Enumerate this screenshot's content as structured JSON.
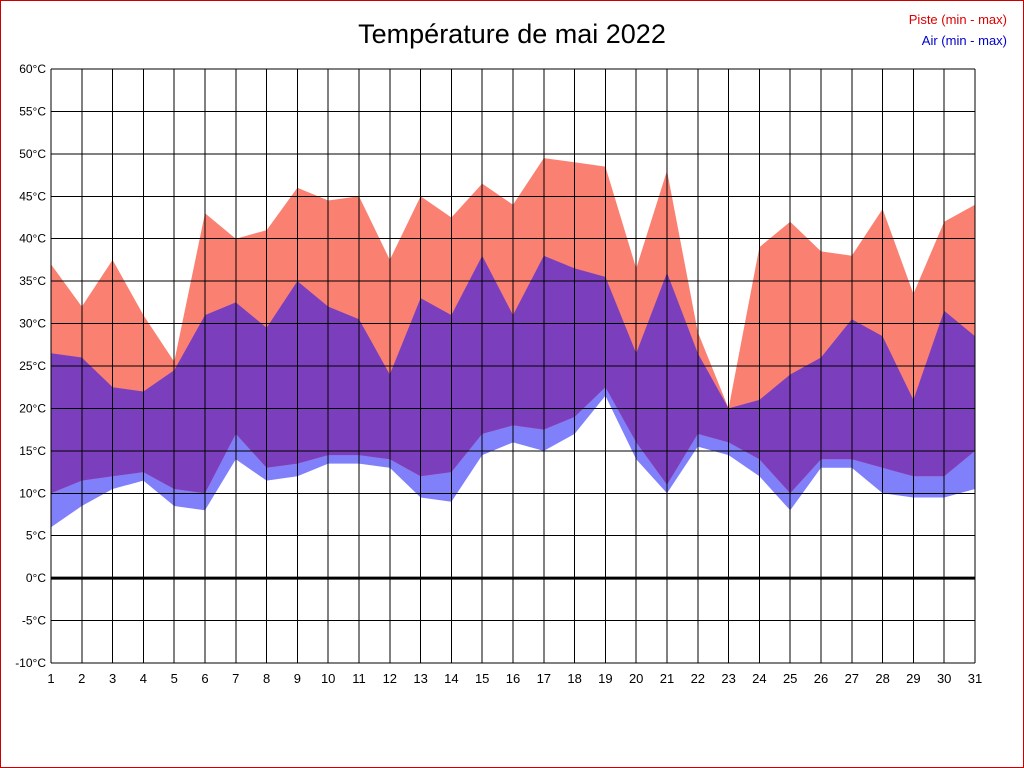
{
  "title": "Température de mai 2022",
  "legend": {
    "piste_label": "Piste (min - max)",
    "air_label": "Air (min - max)",
    "piste_color": "#dd0000",
    "air_color": "#0000cc"
  },
  "chart_data": {
    "type": "area",
    "title": "Température de mai 2022",
    "x": [
      1,
      2,
      3,
      4,
      5,
      6,
      7,
      8,
      9,
      10,
      11,
      12,
      13,
      14,
      15,
      16,
      17,
      18,
      19,
      20,
      21,
      22,
      23,
      24,
      25,
      26,
      27,
      28,
      29,
      30,
      31
    ],
    "series": [
      {
        "name": "Piste max",
        "key": "piste_max",
        "values": [
          37,
          32,
          37.5,
          31,
          25.5,
          43,
          40,
          41,
          46,
          44.5,
          45,
          37.5,
          45,
          42.5,
          46.5,
          44,
          49.5,
          49,
          48.5,
          36.5,
          48,
          29,
          20,
          39,
          42,
          38.5,
          38,
          43.5,
          33.5,
          42,
          44
        ]
      },
      {
        "name": "Piste min",
        "key": "piste_min",
        "values": [
          10,
          11.5,
          12,
          12.5,
          10.5,
          10,
          17,
          13,
          13.5,
          14.5,
          14.5,
          14,
          12,
          12.5,
          17,
          18,
          17.5,
          19,
          22.5,
          16,
          11,
          17,
          16,
          14,
          10,
          14,
          14,
          13,
          12,
          12,
          15
        ]
      },
      {
        "name": "Air max",
        "key": "air_max",
        "values": [
          26.5,
          26,
          22.5,
          22,
          24.5,
          31,
          32.5,
          29.5,
          35,
          32,
          30.5,
          24,
          33,
          31,
          38,
          31,
          38,
          36.5,
          35.5,
          26.5,
          36,
          26.5,
          20,
          21,
          24,
          26,
          30.5,
          28.5,
          21,
          31.5,
          28.5
        ]
      },
      {
        "name": "Air min",
        "key": "air_min",
        "values": [
          6,
          8.5,
          10.5,
          11.5,
          8.5,
          8,
          14,
          11.5,
          12,
          13.5,
          13.5,
          13,
          9.5,
          9,
          14.5,
          16,
          15,
          17,
          21.5,
          14,
          10,
          15.5,
          14.5,
          12,
          8,
          13,
          13,
          10,
          9.5,
          9.5,
          10.5
        ]
      }
    ],
    "colors": {
      "piste": "#fa8072",
      "air": "#8080fa",
      "overlap": "#7b3fbe"
    },
    "ylim": [
      -10,
      60
    ],
    "y_tick_values": [
      60,
      55,
      50,
      45,
      40,
      35,
      30,
      25,
      20,
      15,
      10,
      5,
      0,
      -5,
      -10
    ],
    "y_tick_suffix": "°C",
    "xlabel": "",
    "ylabel": "",
    "grid": true,
    "zero_line": true,
    "legend_position": "top-right"
  }
}
